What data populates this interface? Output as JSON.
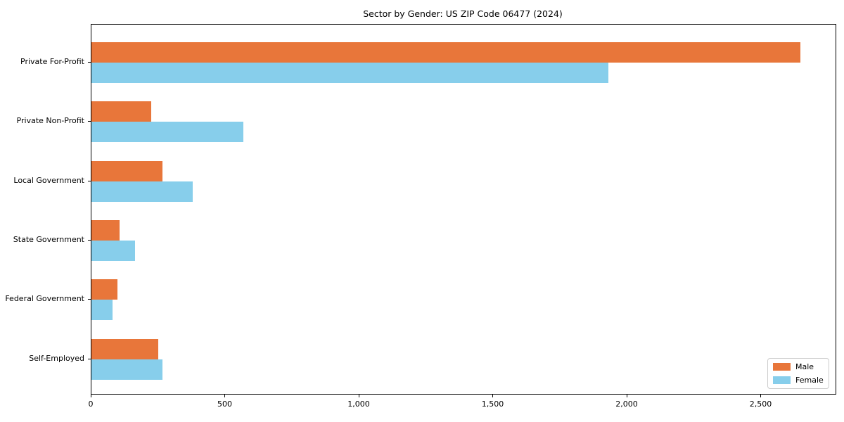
{
  "title": "Sector by Gender: US ZIP Code 06477 (2024)",
  "chart_data": {
    "type": "bar",
    "orientation": "horizontal",
    "title": "Sector by Gender: US ZIP Code 06477 (2024)",
    "xlabel": "",
    "ylabel": "",
    "categories": [
      "Private For-Profit",
      "Private Non-Profit",
      "Local Government",
      "State Government",
      "Federal Government",
      "Self-Employed"
    ],
    "series": [
      {
        "name": "Male",
        "color": "#e8763a",
        "values": [
          2645,
          224,
          266,
          106,
          98,
          249
        ]
      },
      {
        "name": "Female",
        "color": "#87ceeb",
        "values": [
          1928,
          566,
          379,
          164,
          80,
          265
        ]
      }
    ],
    "xlim": [
      0,
      2777
    ],
    "xticks": [
      0,
      500,
      1000,
      1500,
      2000,
      2500
    ],
    "xtick_labels": [
      "0",
      "500",
      "1,000",
      "1,500",
      "2,000",
      "2,500"
    ],
    "grid": false,
    "legend_position": "lower right",
    "background_color": "#ffffff",
    "spine_color": "#000000"
  },
  "legend": {
    "items": [
      {
        "label": "Male",
        "color": "#e8763a"
      },
      {
        "label": "Female",
        "color": "#87ceeb"
      }
    ]
  }
}
